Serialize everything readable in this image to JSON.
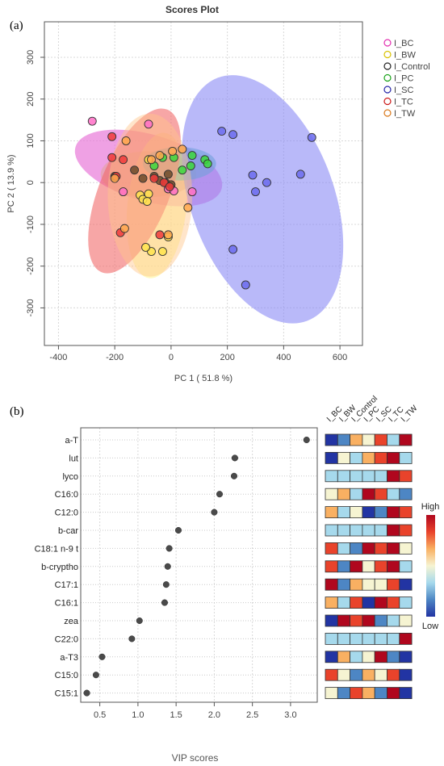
{
  "panels": {
    "a": "(a)",
    "b": "(b)"
  },
  "chart_data": [
    {
      "type": "scatter",
      "title": "Scores Plot",
      "xlabel": "PC 1 ( 51.8 %)",
      "ylabel": "PC 2 ( 13.9 %)",
      "xlim": [
        -450,
        680
      ],
      "ylim": [
        -390,
        385
      ],
      "xticks": [
        -400,
        -200,
        0,
        200,
        400,
        600
      ],
      "yticks": [
        -300,
        -200,
        -100,
        0,
        100,
        200,
        300
      ],
      "grid": true,
      "legend_position": "right",
      "series": [
        {
          "name": "I_BC",
          "color": "#e22fb0",
          "fill": "#ff6ec7",
          "points": [
            [
              -280,
              147
            ],
            [
              -80,
              140
            ],
            [
              -170,
              -22
            ],
            [
              75,
              -22
            ],
            [
              -10,
              -15
            ],
            [
              10,
              -20
            ]
          ],
          "ellipse": {
            "cx": -80,
            "cy": 35,
            "rx": 270,
            "ry": 80,
            "angle": 16,
            "fill": "#e879d9",
            "opacity": 0.7
          }
        },
        {
          "name": "I_BW",
          "color": "#d9c200",
          "fill": "#ffe44d",
          "points": [
            [
              -80,
              55
            ],
            [
              -110,
              -30
            ],
            [
              -100,
              -40
            ],
            [
              -80,
              -27
            ],
            [
              -70,
              -165
            ],
            [
              -30,
              -165
            ],
            [
              -10,
              -130
            ],
            [
              -85,
              -45
            ],
            [
              -90,
              -155
            ]
          ],
          "ellipse": {
            "cx": -50,
            "cy": -55,
            "rx": 105,
            "ry": 175,
            "angle": 6,
            "fill": "#fff59a",
            "opacity": 0.6
          }
        },
        {
          "name": "I_Control",
          "color": "#222222",
          "fill": "#6b4a2a",
          "points": [
            [
              -200,
              15
            ],
            [
              -130,
              30
            ],
            [
              -100,
              10
            ],
            [
              -60,
              15
            ],
            [
              -40,
              5
            ],
            [
              -20,
              0
            ],
            [
              0,
              -5
            ],
            [
              -10,
              20
            ]
          ],
          "ellipse": {
            "cx": -80,
            "cy": 20,
            "rx": 170,
            "ry": 55,
            "angle": 0,
            "fill": "#d9a56d",
            "opacity": 0.35
          }
        },
        {
          "name": "I_PC",
          "color": "#1aa31a",
          "fill": "#3bd83b",
          "points": [
            [
              -60,
              40
            ],
            [
              -30,
              60
            ],
            [
              10,
              60
            ],
            [
              40,
              30
            ],
            [
              70,
              40
            ],
            [
              75,
              65
            ],
            [
              120,
              55
            ],
            [
              130,
              45
            ]
          ],
          "ellipse": {
            "cx": 30,
            "cy": 45,
            "rx": 130,
            "ry": 40,
            "angle": 0,
            "fill": "#4fc1b3",
            "opacity": 0.6
          }
        },
        {
          "name": "I_SC",
          "color": "#2626a8",
          "fill": "#6b6bef",
          "points": [
            [
              180,
              123
            ],
            [
              220,
              115
            ],
            [
              500,
              108
            ],
            [
              290,
              18
            ],
            [
              460,
              20
            ],
            [
              340,
              0
            ],
            [
              300,
              -22
            ],
            [
              220,
              -160
            ],
            [
              265,
              -245
            ]
          ],
          "ellipse": {
            "cx": 325,
            "cy": -40,
            "rx": 255,
            "ry": 310,
            "angle": -20,
            "fill": "#8a8af5",
            "opacity": 0.6
          }
        },
        {
          "name": "I_TC",
          "color": "#cc1a1a",
          "fill": "#f03a3a",
          "points": [
            [
              -210,
              110
            ],
            [
              -170,
              55
            ],
            [
              -210,
              60
            ],
            [
              -195,
              15
            ],
            [
              -60,
              10
            ],
            [
              -25,
              0
            ],
            [
              -5,
              -10
            ],
            [
              -180,
              -120
            ],
            [
              -40,
              -125
            ]
          ],
          "ellipse": {
            "cx": -130,
            "cy": -20,
            "rx": 125,
            "ry": 210,
            "angle": 22,
            "fill": "#f26b6b",
            "opacity": 0.6
          }
        },
        {
          "name": "I_TW",
          "color": "#d9781a",
          "fill": "#ffa84d",
          "points": [
            [
              -160,
              100
            ],
            [
              -70,
              55
            ],
            [
              40,
              80
            ],
            [
              5,
              75
            ],
            [
              -40,
              65
            ],
            [
              -200,
              10
            ],
            [
              -165,
              -110
            ],
            [
              -10,
              -125
            ],
            [
              60,
              -60
            ]
          ],
          "ellipse": {
            "cx": -75,
            "cy": -30,
            "rx": 150,
            "ry": 195,
            "angle": 0,
            "fill": "#ffc58a",
            "opacity": 0.45
          }
        }
      ]
    },
    {
      "type": "scatter",
      "xlabel": "VIP scores",
      "xlim": [
        0.25,
        3.35
      ],
      "xticks": [
        0.5,
        1.0,
        1.5,
        2.0,
        2.5,
        3.0
      ],
      "xtick_labels": [
        "0.5",
        "1.0",
        "1.5",
        "2.0",
        "2.5",
        "3.0"
      ],
      "grid": true,
      "variables": [
        {
          "name": "a-T",
          "vip": 3.21
        },
        {
          "name": "lut",
          "vip": 2.27
        },
        {
          "name": "lyco",
          "vip": 2.26
        },
        {
          "name": "C16:0",
          "vip": 2.07
        },
        {
          "name": "C12:0",
          "vip": 2.0
        },
        {
          "name": "b-car",
          "vip": 1.53
        },
        {
          "name": "C18:1 n-9 t",
          "vip": 1.41
        },
        {
          "name": "b-cryptho",
          "vip": 1.39
        },
        {
          "name": "C17:1",
          "vip": 1.37
        },
        {
          "name": "C16:1",
          "vip": 1.35
        },
        {
          "name": "zea",
          "vip": 1.02
        },
        {
          "name": "C22:0",
          "vip": 0.92
        },
        {
          "name": "a-T3",
          "vip": 0.53
        },
        {
          "name": "C15:0",
          "vip": 0.45
        },
        {
          "name": "C15:1",
          "vip": 0.33
        }
      ]
    },
    {
      "type": "heatmap",
      "columns": [
        "I_BC",
        "I_BW",
        "I_Control",
        "I_PC",
        "I_SC",
        "I_TC",
        "I_TW"
      ],
      "scale": {
        "high": "High",
        "low": "Low",
        "colors": [
          "#2234a3",
          "#4d86c4",
          "#a6d9ec",
          "#f6f4d2",
          "#f9b062",
          "#e9432b",
          "#b0071e"
        ]
      },
      "cells": [
        [
          0,
          1,
          4,
          3,
          5,
          2,
          6
        ],
        [
          0,
          3,
          2,
          4,
          5,
          6,
          2
        ],
        [
          2,
          2,
          2,
          2,
          2,
          6,
          5
        ],
        [
          3,
          4,
          2,
          6,
          5,
          2,
          1
        ],
        [
          4,
          2,
          3,
          0,
          1,
          6,
          5
        ],
        [
          2,
          2,
          2,
          2,
          2,
          6,
          5
        ],
        [
          5,
          2,
          1,
          6,
          5,
          6,
          3
        ],
        [
          5,
          1,
          6,
          3,
          5,
          6,
          2
        ],
        [
          6,
          1,
          4,
          3,
          3,
          5,
          0
        ],
        [
          4,
          2,
          5,
          0,
          6,
          5,
          2
        ],
        [
          0,
          6,
          5,
          6,
          1,
          2,
          3
        ],
        [
          2,
          2,
          2,
          2,
          2,
          2,
          6
        ],
        [
          0,
          4,
          2,
          3,
          6,
          1,
          0
        ],
        [
          5,
          3,
          1,
          4,
          3,
          5,
          0
        ],
        [
          3,
          1,
          5,
          4,
          1,
          6,
          0
        ]
      ]
    }
  ]
}
